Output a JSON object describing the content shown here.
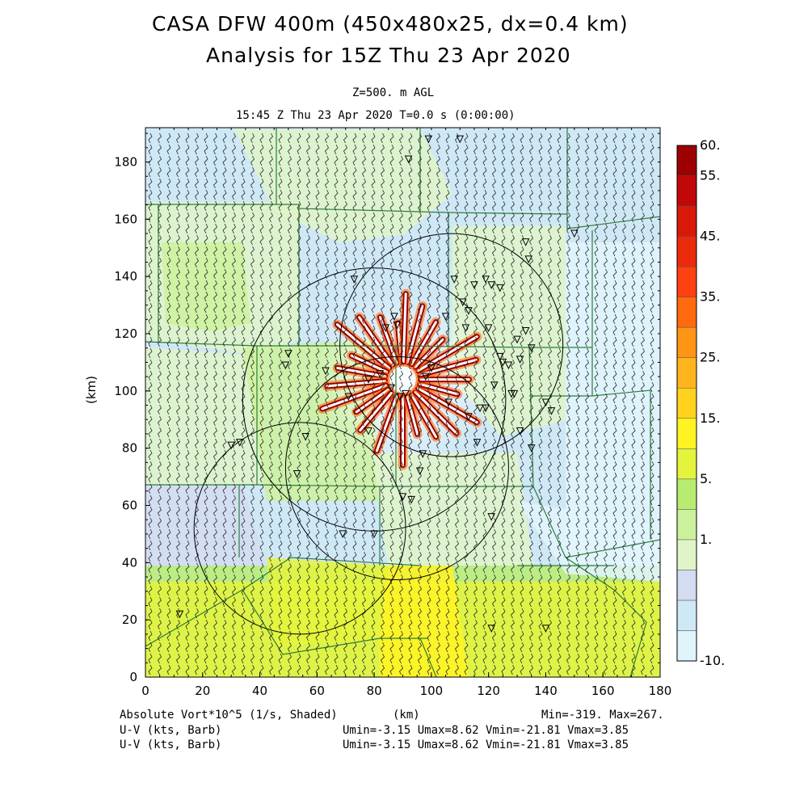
{
  "header": {
    "title_line1": "CASA DFW 400m (450x480x25, dx=0.4 km)",
    "title_line2": "Analysis for 15Z Thu 23 Apr 2020",
    "level": "Z=500. m AGL",
    "time": "15:45 Z Thu 23 Apr 2020   T=0.0 s (0:00:00)"
  },
  "footer": {
    "field_label": "Absolute Vort*10^5 (1/s, Shaded)",
    "x_unit": "(km)",
    "minmax": "Min=-319. Max=267.",
    "barb1_label": "U-V (kts, Barb)",
    "barb1_stats": "Umin=-3.15 Umax=8.62 Vmin=-21.81 Vmax=3.85",
    "barb2_label": "U-V (kts, Barb)",
    "barb2_stats": "Umin=-3.15 Umax=8.62 Vmin=-21.81 Vmax=3.85"
  },
  "chart_data": {
    "type": "heatmap",
    "title": "Absolute Vort*10^5 (1/s, Shaded)",
    "xlabel": "(km)",
    "ylabel": "(km)",
    "xlim": [
      0,
      180
    ],
    "ylim": [
      0,
      192
    ],
    "x_ticks": [
      "0",
      "20",
      "40",
      "60",
      "80",
      "100",
      "120",
      "140",
      "160",
      "180"
    ],
    "y_ticks": [
      "0",
      "20",
      "40",
      "60",
      "80",
      "100",
      "120",
      "140",
      "160",
      "180"
    ],
    "colorbar": {
      "labels": [
        "60.",
        "55.",
        "45.",
        "35.",
        "25.",
        "15.",
        "5.",
        "1.",
        "-10."
      ],
      "colors": [
        "#e0f4fb",
        "#cfe8f6",
        "#d4dcf2",
        "#dff5c8",
        "#ccf19c",
        "#b8ec70",
        "#e4f43c",
        "#fff323",
        "#ffd21e",
        "#ffb41e",
        "#ff9415",
        "#ff6a0f",
        "#ff4010",
        "#ec2a0c",
        "#d8190a",
        "#c00808",
        "#9c0000"
      ]
    },
    "radars": [
      {
        "x": 107,
        "y": 116,
        "r": 39
      },
      {
        "x": 80,
        "y": 97,
        "r": 46
      },
      {
        "x": 88,
        "y": 73,
        "r": 39
      },
      {
        "x": 54,
        "y": 52,
        "r": 37
      }
    ],
    "min": -319,
    "max": 267
  }
}
